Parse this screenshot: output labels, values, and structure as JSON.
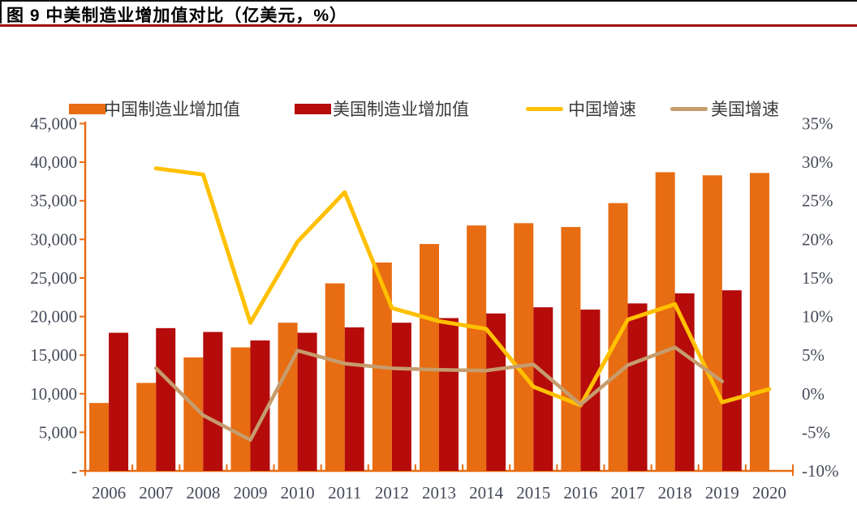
{
  "figure": {
    "title": "图 9 中美制造业增加值对比（亿美元，%）"
  },
  "colors": {
    "china_bar": "#e86c12",
    "us_bar": "#b50b0b",
    "china_line": "#ffc000",
    "us_line": "#c69c6d",
    "axis": "#e86c12",
    "tick_label": "#454a58",
    "legend_text": "#3a3a3a",
    "title_rule": "#9e0b0b"
  },
  "chart_data": {
    "type": "bar",
    "subtype": "combo-bar-line-dual-axis",
    "categories": [
      "2006",
      "2007",
      "2008",
      "2009",
      "2010",
      "2011",
      "2012",
      "2013",
      "2014",
      "2015",
      "2016",
      "2017",
      "2018",
      "2019",
      "2020"
    ],
    "series": [
      {
        "name": "中国制造业增加值",
        "type": "bar",
        "axis": "left",
        "color": "#e86c12",
        "values": [
          8800,
          11400,
          14700,
          16000,
          19200,
          24300,
          27000,
          29400,
          31800,
          32100,
          31600,
          34700,
          38700,
          38300,
          38600
        ]
      },
      {
        "name": "美国制造业增加值",
        "type": "bar",
        "axis": "left",
        "color": "#b50b0b",
        "values": [
          17900,
          18500,
          18000,
          16900,
          17900,
          18600,
          19200,
          19800,
          20400,
          21200,
          20900,
          21700,
          23000,
          23400,
          null
        ]
      },
      {
        "name": "中国增速",
        "type": "line",
        "axis": "right",
        "color": "#ffc000",
        "values": [
          null,
          29.2,
          28.4,
          9.2,
          19.7,
          26.1,
          11.1,
          9.4,
          8.4,
          0.9,
          -1.5,
          9.6,
          11.6,
          -1.1,
          0.6
        ]
      },
      {
        "name": "美国增速",
        "type": "line",
        "axis": "right",
        "color": "#c69c6d",
        "values": [
          null,
          3.3,
          -2.8,
          -6.0,
          5.6,
          3.9,
          3.3,
          3.1,
          3.0,
          3.8,
          -1.4,
          3.7,
          6.0,
          1.6,
          null
        ]
      }
    ],
    "left_axis": {
      "title": "亿美元",
      "min": 0,
      "max": 45000,
      "tick_labels": [
        "-",
        "5,000",
        "10,000",
        "15,000",
        "20,000",
        "25,000",
        "30,000",
        "35,000",
        "40,000",
        "45,000"
      ]
    },
    "right_axis": {
      "title": "%",
      "min": -10,
      "max": 35,
      "tick_labels": [
        "-10%",
        "-5%",
        "0%",
        "5%",
        "10%",
        "15%",
        "20%",
        "25%",
        "30%",
        "35%"
      ]
    },
    "legend_position": "top",
    "grid": false
  }
}
